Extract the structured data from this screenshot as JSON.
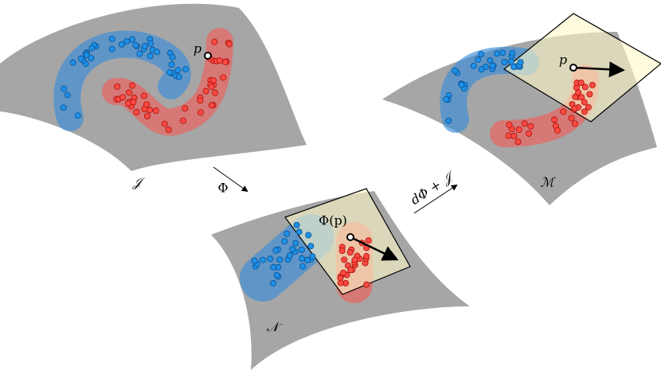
{
  "manifolds": [
    {
      "label": "𝒥",
      "point_label": "p"
    },
    {
      "label": "𝒩",
      "point_label": "Φ(p)"
    },
    {
      "label": "ℳ",
      "point_label": "p"
    }
  ],
  "arrows": [
    {
      "label": "Φ"
    },
    {
      "label": "dΦ + 𝒥"
    }
  ]
}
